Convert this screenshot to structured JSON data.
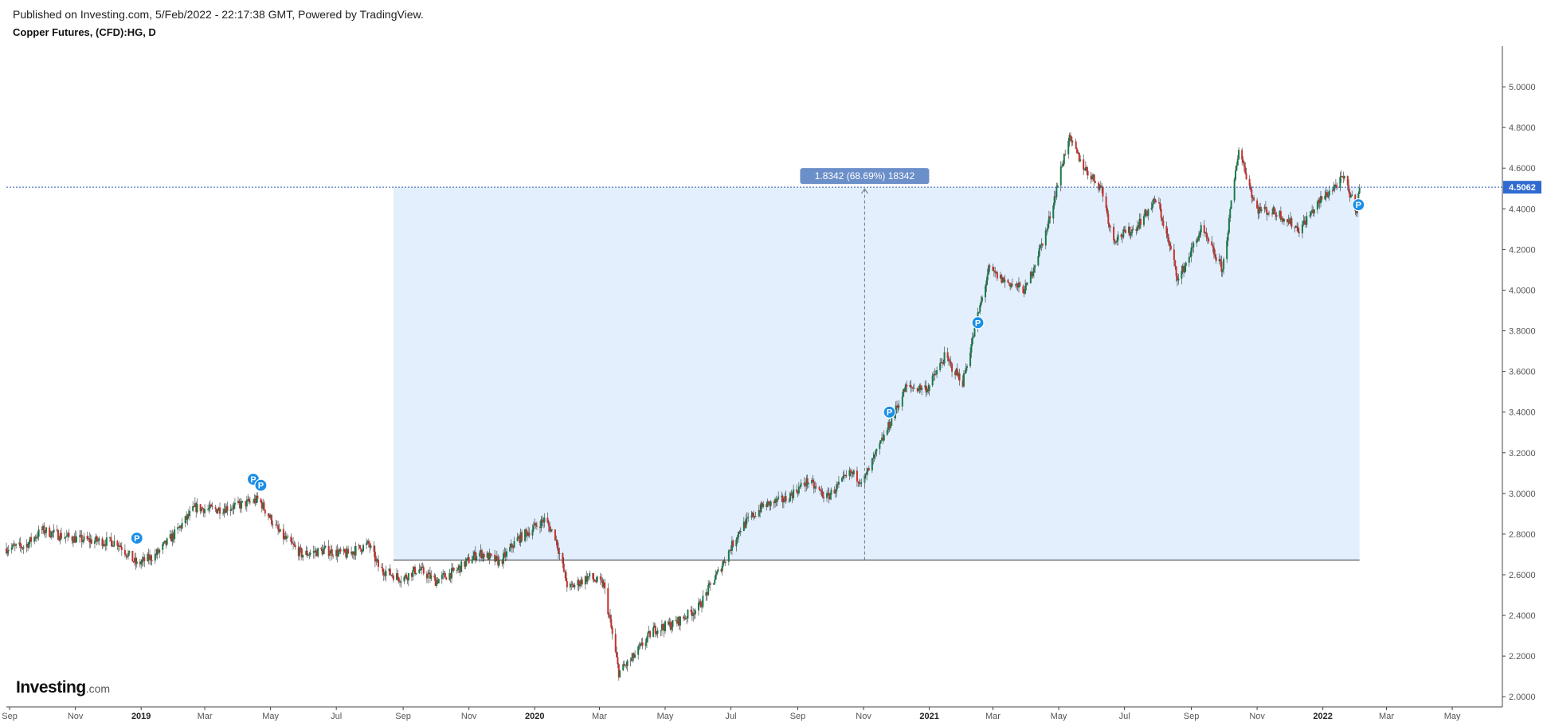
{
  "header": {
    "published": "Published on Investing.com, 5/Feb/2022 - 22:17:38 GMT, Powered by TradingView."
  },
  "chart_title": "Copper Futures, (CFD):HG, D",
  "logo": {
    "brand": "Investing",
    "tld": ".com"
  },
  "colors": {
    "up": "#1a7a4a",
    "down": "#c9302c",
    "shade": "#e3effd",
    "shade_border": "#333333",
    "price_line": "#2f5bb0",
    "price_label_bg": "#2f6ad0",
    "measure_label_bg": "#6b8fc9",
    "marker": "#1a8fe8"
  },
  "chart_data": {
    "type": "candlestick",
    "title": "Copper Futures, (CFD):HG, D",
    "interval": "D",
    "ylim": [
      1.95,
      5.2
    ],
    "x_range": [
      "2018-08-29",
      "2022-06-15"
    ],
    "y_ticks": [
      "2.0000",
      "2.2000",
      "2.4000",
      "2.6000",
      "2.8000",
      "3.0000",
      "3.2000",
      "3.4000",
      "3.6000",
      "3.8000",
      "4.0000",
      "4.2000",
      "4.4000",
      "4.6000",
      "4.8000",
      "5.0000"
    ],
    "x_ticks": [
      {
        "label": "Sep",
        "date": "2018-09-01",
        "bold": false
      },
      {
        "label": "Nov",
        "date": "2018-11-01",
        "bold": false
      },
      {
        "label": "2019",
        "date": "2019-01-01",
        "bold": true
      },
      {
        "label": "Mar",
        "date": "2019-03-01",
        "bold": false
      },
      {
        "label": "May",
        "date": "2019-05-01",
        "bold": false
      },
      {
        "label": "Jul",
        "date": "2019-07-01",
        "bold": false
      },
      {
        "label": "Sep",
        "date": "2019-09-01",
        "bold": false
      },
      {
        "label": "Nov",
        "date": "2019-11-01",
        "bold": false
      },
      {
        "label": "2020",
        "date": "2020-01-01",
        "bold": true
      },
      {
        "label": "Mar",
        "date": "2020-03-01",
        "bold": false
      },
      {
        "label": "May",
        "date": "2020-05-01",
        "bold": false
      },
      {
        "label": "Jul",
        "date": "2020-07-01",
        "bold": false
      },
      {
        "label": "Sep",
        "date": "2020-09-01",
        "bold": false
      },
      {
        "label": "Nov",
        "date": "2020-11-01",
        "bold": false
      },
      {
        "label": "2021",
        "date": "2021-01-01",
        "bold": true
      },
      {
        "label": "Mar",
        "date": "2021-03-01",
        "bold": false
      },
      {
        "label": "May",
        "date": "2021-05-01",
        "bold": false
      },
      {
        "label": "Jul",
        "date": "2021-07-01",
        "bold": false
      },
      {
        "label": "Sep",
        "date": "2021-09-01",
        "bold": false
      },
      {
        "label": "Nov",
        "date": "2021-11-01",
        "bold": false
      },
      {
        "label": "2022",
        "date": "2022-01-01",
        "bold": true
      },
      {
        "label": "Mar",
        "date": "2022-03-01",
        "bold": false
      },
      {
        "label": "May",
        "date": "2022-05-01",
        "bold": false
      }
    ],
    "price_series": [
      [
        "2018-08-29",
        2.73
      ],
      [
        "2018-09-15",
        2.74
      ],
      [
        "2018-10-01",
        2.82
      ],
      [
        "2018-10-20",
        2.79
      ],
      [
        "2018-11-10",
        2.77
      ],
      [
        "2018-12-10",
        2.76
      ],
      [
        "2018-12-28",
        2.65
      ],
      [
        "2019-01-15",
        2.7
      ],
      [
        "2019-02-01",
        2.8
      ],
      [
        "2019-02-20",
        2.93
      ],
      [
        "2019-03-10",
        2.92
      ],
      [
        "2019-04-01",
        2.94
      ],
      [
        "2019-04-20",
        2.97
      ],
      [
        "2019-05-10",
        2.8
      ],
      [
        "2019-05-30",
        2.7
      ],
      [
        "2019-06-20",
        2.72
      ],
      [
        "2019-07-10",
        2.7
      ],
      [
        "2019-07-31",
        2.75
      ],
      [
        "2019-08-10",
        2.63
      ],
      [
        "2019-08-31",
        2.58
      ],
      [
        "2019-09-15",
        2.63
      ],
      [
        "2019-10-01",
        2.57
      ],
      [
        "2019-10-20",
        2.62
      ],
      [
        "2019-11-10",
        2.71
      ],
      [
        "2019-11-30",
        2.66
      ],
      [
        "2019-12-15",
        2.77
      ],
      [
        "2020-01-10",
        2.87
      ],
      [
        "2020-01-20",
        2.79
      ],
      [
        "2020-02-01",
        2.53
      ],
      [
        "2020-02-20",
        2.59
      ],
      [
        "2020-03-05",
        2.55
      ],
      [
        "2020-03-19",
        2.12
      ],
      [
        "2020-04-01",
        2.19
      ],
      [
        "2020-04-20",
        2.33
      ],
      [
        "2020-05-10",
        2.36
      ],
      [
        "2020-06-01",
        2.44
      ],
      [
        "2020-06-20",
        2.62
      ],
      [
        "2020-07-10",
        2.83
      ],
      [
        "2020-07-31",
        2.94
      ],
      [
        "2020-08-20",
        2.97
      ],
      [
        "2020-09-10",
        3.06
      ],
      [
        "2020-09-28",
        2.98
      ],
      [
        "2020-10-20",
        3.1
      ],
      [
        "2020-11-01",
        3.06
      ],
      [
        "2020-11-20",
        3.28
      ],
      [
        "2020-12-10",
        3.52
      ],
      [
        "2020-12-31",
        3.52
      ],
      [
        "2021-01-15",
        3.67
      ],
      [
        "2021-02-01",
        3.55
      ],
      [
        "2021-02-25",
        4.1
      ],
      [
        "2021-03-10",
        4.05
      ],
      [
        "2021-03-31",
        4.0
      ],
      [
        "2021-04-20",
        4.3
      ],
      [
        "2021-05-10",
        4.75
      ],
      [
        "2021-05-25",
        4.6
      ],
      [
        "2021-06-10",
        4.5
      ],
      [
        "2021-06-20",
        4.25
      ],
      [
        "2021-07-10",
        4.3
      ],
      [
        "2021-07-31",
        4.45
      ],
      [
        "2021-08-20",
        4.05
      ],
      [
        "2021-09-10",
        4.3
      ],
      [
        "2021-09-30",
        4.1
      ],
      [
        "2021-10-15",
        4.7
      ],
      [
        "2021-10-31",
        4.4
      ],
      [
        "2021-11-20",
        4.38
      ],
      [
        "2021-12-10",
        4.3
      ],
      [
        "2021-12-31",
        4.45
      ],
      [
        "2022-01-20",
        4.55
      ],
      [
        "2022-02-01",
        4.4
      ],
      [
        "2022-02-04",
        4.5
      ]
    ],
    "measure": {
      "label": "1.8342 (68.69%) 18342",
      "from_date": "2019-08-23",
      "to_date": "2022-02-04",
      "low": 2.672,
      "high": 4.5062,
      "arrow_date": "2020-11-02"
    },
    "last_price": {
      "value": 4.5062,
      "label": "4.5062"
    },
    "markers": [
      {
        "date": "2018-12-28",
        "price": 2.78,
        "label": "P"
      },
      {
        "date": "2019-04-15",
        "price": 3.07,
        "label": "P"
      },
      {
        "date": "2019-04-22",
        "price": 3.04,
        "label": "P"
      },
      {
        "date": "2020-11-25",
        "price": 3.4,
        "label": "P"
      },
      {
        "date": "2021-02-15",
        "price": 3.84,
        "label": "P"
      },
      {
        "date": "2022-02-03",
        "price": 4.42,
        "label": "P"
      }
    ]
  }
}
